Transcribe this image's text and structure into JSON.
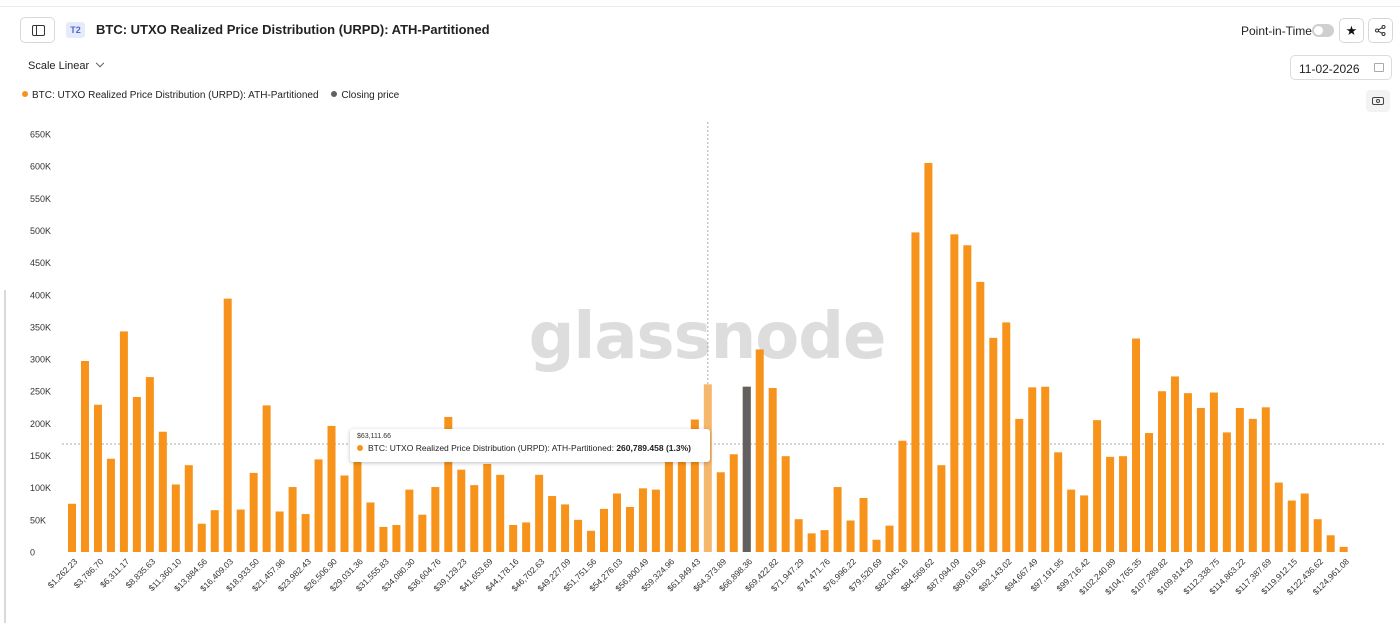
{
  "header": {
    "tier_badge": "T2",
    "title": "BTC: UTXO Realized Price Distribution (URPD): ATH-Partitioned",
    "point_in_time_label": "Point-in-Time",
    "point_in_time_on": false,
    "star_icon": "★",
    "share_icon": "share-icon"
  },
  "toolbar": {
    "scale_label": "Scale Linear",
    "date_value": "11-02-2026"
  },
  "watermark": "glassnode",
  "tooltip": {
    "date": "$63,111.66",
    "series_label": "BTC: UTXO Realized Price Distribution (URPD): ATH-Partitioned:",
    "value": "260,789.458 (1.3%)"
  },
  "colors": {
    "accent": "#f7931a",
    "closing": "#616161",
    "highlight": "#f5b76b"
  },
  "chart_data": {
    "type": "bar",
    "ylim": [
      0,
      650000
    ],
    "yticks": [
      0,
      50000,
      100000,
      150000,
      200000,
      250000,
      300000,
      350000,
      400000,
      450000,
      500000,
      550000,
      600000,
      650000
    ],
    "ytick_labels": [
      "0",
      "50K",
      "100K",
      "150K",
      "200K",
      "250K",
      "300K",
      "350K",
      "400K",
      "450K",
      "500K",
      "550K",
      "600K",
      "650K"
    ],
    "x_tick_labels": [
      "$1,262.23",
      "$3,786.70",
      "$6,311.17",
      "$8,835.63",
      "$11,360.10",
      "$13,884.56",
      "$16,409.03",
      "$18,933.50",
      "$21,457.96",
      "$23,982.43",
      "$26,506.90",
      "$29,031.36",
      "$31,555.83",
      "$34,080.30",
      "$36,604.76",
      "$39,129.23",
      "$41,653.69",
      "$44,178.16",
      "$46,702.63",
      "$49,227.09",
      "$51,751.56",
      "$54,276.03",
      "$56,800.49",
      "$59,324.96",
      "$61,849.43",
      "$64,373.89",
      "$66,898.36",
      "$69,422.82",
      "$71,947.29",
      "$74,471.76",
      "$76,996.22",
      "$79,520.69",
      "$82,045.16",
      "$84,569.62",
      "$87,094.09",
      "$89,618.56",
      "$92,143.02",
      "$94,667.49",
      "$97,191.95",
      "$99,716.42",
      "$102,240.89",
      "$104,765.35",
      "$107,289.82",
      "$109,814.29",
      "$112,338.75",
      "$114,863.22",
      "$117,387.69",
      "$119,912.15",
      "$122,436.62",
      "$124,961.08"
    ],
    "series": [
      {
        "name": "BTC: UTXO Realized Price Distribution (URPD): ATH-Partitioned",
        "color": "#f7931a",
        "values": [
          75000,
          297000,
          229000,
          145000,
          343000,
          241000,
          272000,
          187000,
          105000,
          135000,
          44000,
          65000,
          394000,
          66000,
          123000,
          228000,
          63000,
          101000,
          59000,
          144000,
          196000,
          119000,
          146000,
          77000,
          39000,
          42000,
          97000,
          58000,
          101000,
          210000,
          128000,
          104000,
          137000,
          120000,
          42000,
          46000,
          120000,
          87000,
          74000,
          50000,
          33000,
          67000,
          91000,
          70000,
          99000,
          97000,
          160000,
          152000,
          206000,
          260789,
          124000,
          152000,
          257000,
          315000,
          255000,
          149000,
          51000,
          29000,
          34000,
          101000,
          49000,
          84000,
          19000,
          41000,
          173000,
          497000,
          605000,
          135000,
          494000,
          477000,
          420000,
          333000,
          357000,
          207000,
          256000,
          257000,
          155000,
          97000,
          88000,
          205000,
          148000,
          149000,
          332000,
          185000,
          250000,
          273000,
          247000,
          224000,
          248000,
          186000,
          224000,
          207000,
          225000,
          108000,
          80000,
          91000,
          51000,
          26000,
          8000
        ]
      },
      {
        "name": "Closing price",
        "color": "#616161"
      }
    ],
    "highlighted_index": 49,
    "closing_price_index": 52,
    "crosshair_y_value": 168000,
    "grid": false,
    "legend_position": "top-left"
  }
}
